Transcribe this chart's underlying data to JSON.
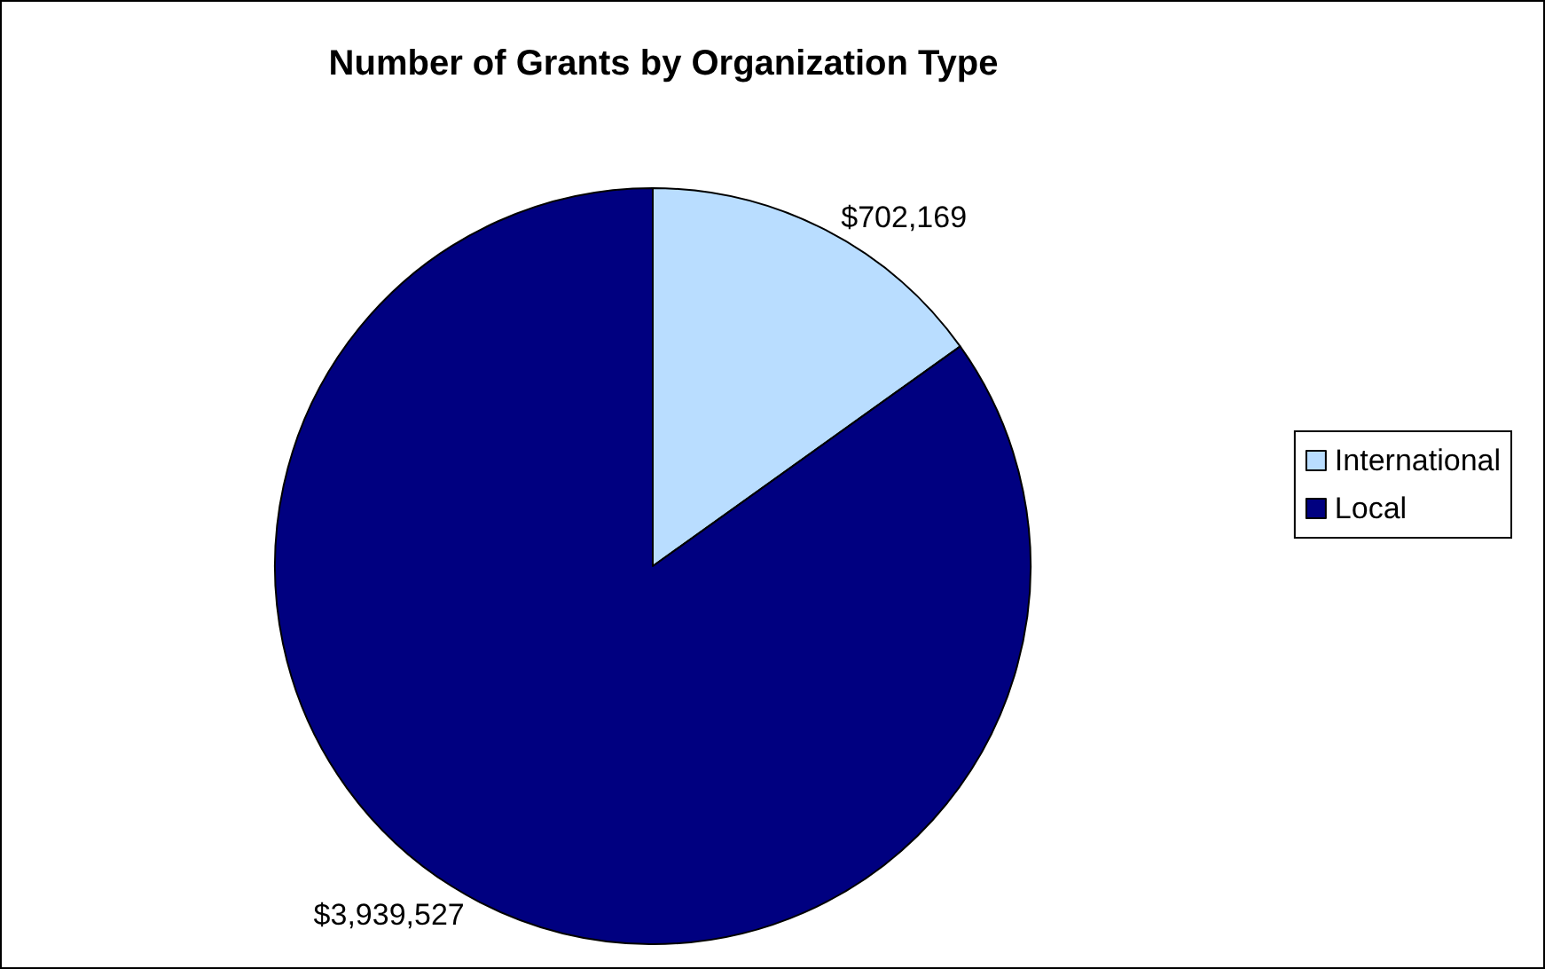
{
  "chart_data": {
    "type": "pie",
    "title": "Number of Grants by Organization Type",
    "categories": [
      "International",
      "Local"
    ],
    "values": [
      702169,
      3939527
    ],
    "value_labels": [
      "$702,169",
      "$3,939,527"
    ],
    "colors": [
      "#b9ddff",
      "#000080"
    ],
    "legend": "right"
  }
}
